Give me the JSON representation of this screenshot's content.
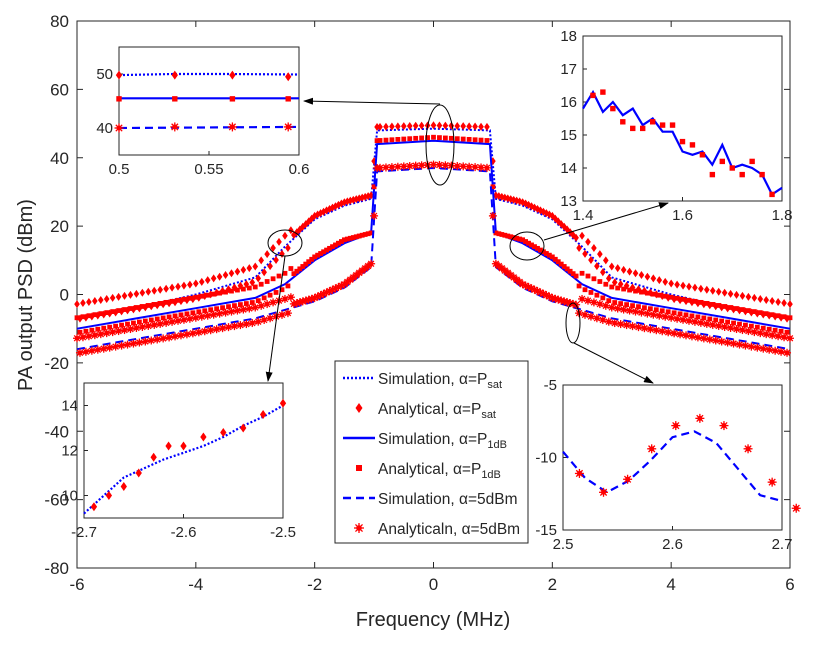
{
  "chart_data": {
    "type": "line",
    "title": "",
    "xlabel": "Frequency (MHz)",
    "ylabel": "PA output PSD (dBm)",
    "xlim": [
      -6,
      6
    ],
    "ylim": [
      -80,
      80
    ],
    "xticks": [
      "-6",
      "-4",
      "-2",
      "0",
      "2",
      "4",
      "6"
    ],
    "yticks": [
      "-80",
      "-60",
      "-40",
      "-20",
      "0",
      "20",
      "40",
      "60",
      "80"
    ],
    "series": [
      {
        "name": "Simulation, α=P_sat",
        "style": "dotted",
        "color": "#0000ff",
        "points": [
          [
            -6,
            -7
          ],
          [
            -5,
            -4
          ],
          [
            -4,
            0
          ],
          [
            -3,
            5
          ],
          [
            -2.5,
            14
          ],
          [
            -2,
            22
          ],
          [
            -1.5,
            26
          ],
          [
            -1.05,
            28
          ],
          [
            -0.95,
            48
          ],
          [
            0,
            48.5
          ],
          [
            0.95,
            48
          ],
          [
            1.05,
            28
          ],
          [
            1.5,
            26
          ],
          [
            2,
            22
          ],
          [
            2.5,
            14
          ],
          [
            3,
            5
          ],
          [
            4,
            0
          ],
          [
            5,
            -4
          ],
          [
            6,
            -7
          ]
        ]
      },
      {
        "name": "Analytical, α=P_sat",
        "style": "marker-diamond",
        "color": "#ff0000",
        "points": [
          [
            -6,
            -5
          ],
          [
            -5,
            -2
          ],
          [
            -4,
            1
          ],
          [
            -3,
            6
          ],
          [
            -2.5,
            15
          ],
          [
            -2,
            23
          ],
          [
            -1.5,
            27
          ],
          [
            -1.05,
            29
          ],
          [
            -0.95,
            49
          ],
          [
            0,
            49.5
          ],
          [
            0.95,
            49
          ],
          [
            1.05,
            29
          ],
          [
            1.5,
            27
          ],
          [
            2,
            23
          ],
          [
            2.5,
            15
          ],
          [
            3,
            6
          ],
          [
            4,
            1
          ],
          [
            5,
            -2
          ],
          [
            6,
            -5
          ]
        ]
      },
      {
        "name": "Simulation, α=P_1dB",
        "style": "solid",
        "color": "#0000ff",
        "points": [
          [
            -6,
            -10
          ],
          [
            -5,
            -7
          ],
          [
            -4,
            -4
          ],
          [
            -3,
            -1
          ],
          [
            -2.5,
            3
          ],
          [
            -2,
            10
          ],
          [
            -1.5,
            15
          ],
          [
            -1.05,
            18
          ],
          [
            -0.95,
            44
          ],
          [
            0,
            45
          ],
          [
            0.95,
            44
          ],
          [
            1.05,
            18
          ],
          [
            1.5,
            15
          ],
          [
            2,
            10
          ],
          [
            2.5,
            3
          ],
          [
            3,
            -1
          ],
          [
            4,
            -4
          ],
          [
            5,
            -7
          ],
          [
            6,
            -10
          ]
        ]
      },
      {
        "name": "Analytical, α=P_1dB",
        "style": "marker-square",
        "color": "#ff0000",
        "points": [
          [
            -6,
            -9
          ],
          [
            -5,
            -6
          ],
          [
            -4,
            -3
          ],
          [
            -3,
            0
          ],
          [
            -2.5,
            4
          ],
          [
            -2,
            11
          ],
          [
            -1.5,
            16
          ],
          [
            -1.05,
            18
          ],
          [
            -0.95,
            45
          ],
          [
            0,
            46
          ],
          [
            0.95,
            45
          ],
          [
            1.05,
            18
          ],
          [
            1.5,
            16
          ],
          [
            2,
            11
          ],
          [
            2.5,
            4
          ],
          [
            3,
            0
          ],
          [
            4,
            -3
          ],
          [
            5,
            -6
          ],
          [
            6,
            -9
          ]
        ]
      },
      {
        "name": "Simulation, α=5dBm",
        "style": "dashed",
        "color": "#0000ff",
        "points": [
          [
            -6,
            -16
          ],
          [
            -5,
            -13
          ],
          [
            -4,
            -10
          ],
          [
            -3,
            -7
          ],
          [
            -2,
            -2
          ],
          [
            -1.5,
            2
          ],
          [
            -1.05,
            8
          ],
          [
            -0.95,
            36
          ],
          [
            0,
            37
          ],
          [
            0.95,
            36
          ],
          [
            1.05,
            8
          ],
          [
            1.5,
            2
          ],
          [
            2,
            -2
          ],
          [
            3,
            -7
          ],
          [
            4,
            -10
          ],
          [
            5,
            -13
          ],
          [
            6,
            -16
          ]
        ]
      },
      {
        "name": "Analyticaln, α=5dBm",
        "style": "marker-star",
        "color": "#ff0000",
        "points": [
          [
            -6,
            -15
          ],
          [
            -5,
            -12
          ],
          [
            -4,
            -9
          ],
          [
            -3,
            -6
          ],
          [
            -2,
            -1
          ],
          [
            -1.5,
            3
          ],
          [
            -1.05,
            9
          ],
          [
            -0.95,
            37
          ],
          [
            0,
            38
          ],
          [
            0.95,
            37
          ],
          [
            1.05,
            9
          ],
          [
            1.5,
            3
          ],
          [
            2,
            -1
          ],
          [
            3,
            -6
          ],
          [
            4,
            -9
          ],
          [
            5,
            -12
          ],
          [
            6,
            -15
          ]
        ]
      }
    ],
    "legend": {
      "placement": "center-right",
      "entries": [
        {
          "prefix": "Simulation, ",
          "alpha": "α",
          "eq": "=P",
          "sub": "sat",
          "style": "dotted"
        },
        {
          "prefix": "Analytical, ",
          "alpha": "α",
          "eq": "=P",
          "sub": "sat",
          "style": "marker-diamond"
        },
        {
          "prefix": "Simulation, ",
          "alpha": "α",
          "eq": "=P",
          "sub": "1dB",
          "style": "solid"
        },
        {
          "prefix": "Analytical, ",
          "alpha": "α",
          "eq": "=P",
          "sub": "1dB",
          "style": "marker-square"
        },
        {
          "prefix": "Simulation, ",
          "alpha": "α",
          "eq": "=5dBm",
          "sub": "",
          "style": "dashed"
        },
        {
          "prefix": "Analyticaln, ",
          "alpha": "α",
          "eq": "=5dBm",
          "sub": "",
          "style": "marker-star"
        }
      ]
    },
    "insets": [
      {
        "name": "inset-top-left",
        "xlim": [
          0.5,
          0.6
        ],
        "ylim": [
          35,
          55
        ],
        "xticks": [
          "0.5",
          "0.55",
          "0.6"
        ],
        "yticks": [
          "40",
          "50"
        ],
        "lines": [
          {
            "style": "dotted",
            "points": [
              [
                0.5,
                49.8
              ],
              [
                0.53,
                50.0
              ],
              [
                0.56,
                50.0
              ],
              [
                0.6,
                49.9
              ]
            ]
          },
          {
            "style": "solid",
            "points": [
              [
                0.5,
                45.5
              ],
              [
                0.6,
                45.5
              ]
            ]
          },
          {
            "style": "dashed",
            "points": [
              [
                0.5,
                40.0
              ],
              [
                0.6,
                40.2
              ]
            ]
          }
        ],
        "markers": [
          {
            "style": "marker-diamond",
            "points": [
              [
                0.5,
                49.8
              ],
              [
                0.531,
                49.8
              ],
              [
                0.563,
                49.8
              ],
              [
                0.594,
                49.5
              ]
            ]
          },
          {
            "style": "marker-square",
            "points": [
              [
                0.5,
                45.4
              ],
              [
                0.531,
                45.4
              ],
              [
                0.563,
                45.4
              ],
              [
                0.594,
                45.4
              ]
            ]
          },
          {
            "style": "marker-star",
            "points": [
              [
                0.5,
                40.0
              ],
              [
                0.531,
                40.2
              ],
              [
                0.563,
                40.2
              ],
              [
                0.594,
                40.2
              ]
            ]
          }
        ]
      },
      {
        "name": "inset-top-right",
        "xlim": [
          1.4,
          1.8
        ],
        "ylim": [
          13,
          18
        ],
        "xticks": [
          "1.4",
          "1.6",
          "1.8"
        ],
        "yticks": [
          "13",
          "14",
          "15",
          "16",
          "17",
          "18"
        ],
        "lines": [
          {
            "style": "solid",
            "points": [
              [
                1.4,
                15.8
              ],
              [
                1.42,
                16.3
              ],
              [
                1.44,
                15.7
              ],
              [
                1.46,
                16.0
              ],
              [
                1.48,
                15.6
              ],
              [
                1.5,
                15.8
              ],
              [
                1.52,
                15.3
              ],
              [
                1.54,
                15.5
              ],
              [
                1.56,
                15.1
              ],
              [
                1.58,
                15.1
              ],
              [
                1.6,
                14.5
              ],
              [
                1.62,
                14.4
              ],
              [
                1.64,
                14.5
              ],
              [
                1.66,
                14.1
              ],
              [
                1.68,
                14.7
              ],
              [
                1.7,
                14.0
              ],
              [
                1.72,
                14.1
              ],
              [
                1.74,
                14.0
              ],
              [
                1.76,
                13.8
              ],
              [
                1.78,
                13.2
              ],
              [
                1.8,
                13.4
              ]
            ]
          }
        ],
        "markers": [
          {
            "style": "marker-square",
            "points": [
              [
                1.42,
                16.2
              ],
              [
                1.44,
                16.3
              ],
              [
                1.46,
                15.8
              ],
              [
                1.48,
                15.4
              ],
              [
                1.5,
                15.2
              ],
              [
                1.52,
                15.2
              ],
              [
                1.54,
                15.4
              ],
              [
                1.56,
                15.3
              ],
              [
                1.58,
                15.3
              ],
              [
                1.6,
                14.8
              ],
              [
                1.62,
                14.7
              ],
              [
                1.64,
                14.4
              ],
              [
                1.66,
                13.8
              ],
              [
                1.68,
                14.2
              ],
              [
                1.7,
                14.0
              ],
              [
                1.72,
                13.8
              ],
              [
                1.74,
                14.2
              ],
              [
                1.76,
                13.8
              ],
              [
                1.78,
                13.2
              ]
            ]
          }
        ]
      },
      {
        "name": "inset-bottom-left",
        "xlim": [
          -2.7,
          -2.5
        ],
        "ylim": [
          9,
          15
        ],
        "xticks": [
          "-2.7",
          "-2.6",
          "-2.5"
        ],
        "yticks": [
          "10",
          "12",
          "14"
        ],
        "lines": [
          {
            "style": "dotted",
            "points": [
              [
                -2.7,
                9.2
              ],
              [
                -2.68,
                10.0
              ],
              [
                -2.66,
                10.8
              ],
              [
                -2.64,
                11.2
              ],
              [
                -2.62,
                11.6
              ],
              [
                -2.6,
                11.9
              ],
              [
                -2.58,
                12.2
              ],
              [
                -2.56,
                12.6
              ],
              [
                -2.54,
                13.1
              ],
              [
                -2.52,
                13.5
              ],
              [
                -2.5,
                14.0
              ]
            ]
          }
        ],
        "markers": [
          {
            "style": "marker-diamond",
            "points": [
              [
                -2.69,
                9.5
              ],
              [
                -2.675,
                10.0
              ],
              [
                -2.66,
                10.4
              ],
              [
                -2.645,
                11.0
              ],
              [
                -2.63,
                11.7
              ],
              [
                -2.615,
                12.2
              ],
              [
                -2.6,
                12.2
              ],
              [
                -2.58,
                12.6
              ],
              [
                -2.56,
                12.8
              ],
              [
                -2.54,
                13.0
              ],
              [
                -2.52,
                13.6
              ],
              [
                -2.5,
                14.1
              ]
            ]
          }
        ]
      },
      {
        "name": "inset-bottom-right",
        "xlim": [
          2.5,
          2.7
        ],
        "ylim": [
          -15,
          -5
        ],
        "xticks": [
          "2.5",
          "2.6",
          "2.7"
        ],
        "yticks": [
          "-5",
          "-10",
          "-15"
        ],
        "lines": [
          {
            "style": "dashed",
            "points": [
              [
                2.5,
                -9.6
              ],
              [
                2.52,
                -11.4
              ],
              [
                2.54,
                -12.4
              ],
              [
                2.56,
                -11.6
              ],
              [
                2.58,
                -10.2
              ],
              [
                2.6,
                -8.6
              ],
              [
                2.62,
                -8.2
              ],
              [
                2.64,
                -9.0
              ],
              [
                2.66,
                -10.8
              ],
              [
                2.68,
                -12.6
              ],
              [
                2.7,
                -13.0
              ]
            ]
          }
        ],
        "markers": [
          {
            "style": "marker-star",
            "points": [
              [
                2.515,
                -11.1
              ],
              [
                2.537,
                -12.4
              ],
              [
                2.559,
                -11.5
              ],
              [
                2.581,
                -9.4
              ],
              [
                2.603,
                -7.8
              ],
              [
                2.625,
                -7.3
              ],
              [
                2.647,
                -7.8
              ],
              [
                2.669,
                -9.4
              ],
              [
                2.691,
                -11.7
              ],
              [
                2.713,
                -13.5
              ]
            ]
          }
        ]
      }
    ],
    "annotations": [
      "zoom arrows from ellipses to insets"
    ]
  }
}
